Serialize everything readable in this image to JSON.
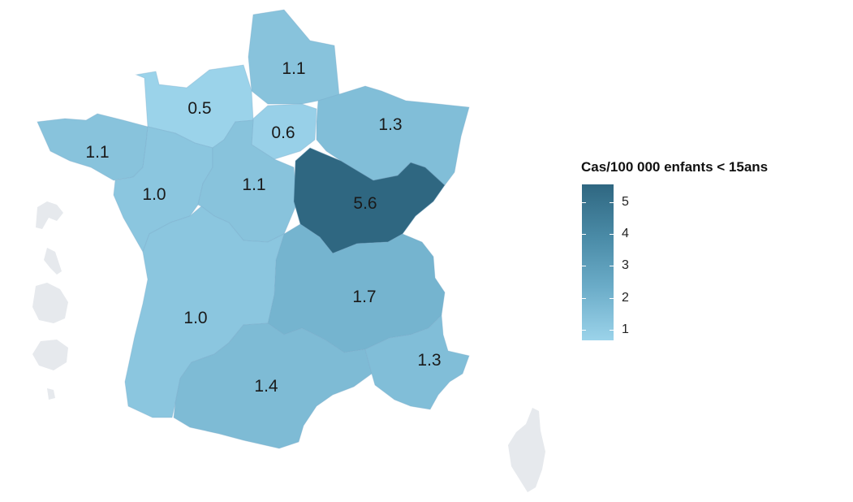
{
  "legend": {
    "title": "Cas/100 000 enfants < 15ans",
    "ticks": [
      "5",
      "4",
      "3",
      "2",
      "1"
    ],
    "colors": {
      "low": "#9bd3ea",
      "mid": "#6aabc7",
      "high": "#2f6781"
    }
  },
  "regions": [
    {
      "id": "hauts-de-france",
      "label": "1.1",
      "value": 1.1
    },
    {
      "id": "normandie",
      "label": "0.5",
      "value": 0.5
    },
    {
      "id": "ile-de-france",
      "label": "0.6",
      "value": 0.6
    },
    {
      "id": "grand-est",
      "label": "1.3",
      "value": 1.3
    },
    {
      "id": "bretagne",
      "label": "1.1",
      "value": 1.1
    },
    {
      "id": "pays-de-la-loire",
      "label": "1.0",
      "value": 1.0
    },
    {
      "id": "centre-val-de-loire",
      "label": "1.1",
      "value": 1.1
    },
    {
      "id": "bourgogne-franche-comte",
      "label": "5.6",
      "value": 5.6
    },
    {
      "id": "auvergne-rhone-alpes",
      "label": "1.7",
      "value": 1.7
    },
    {
      "id": "nouvelle-aquitaine",
      "label": "1.0",
      "value": 1.0
    },
    {
      "id": "occitanie",
      "label": "1.4",
      "value": 1.4
    },
    {
      "id": "provence-alpes-cote-dazur",
      "label": "1.3",
      "value": 1.3
    }
  ],
  "no_data_color": "#e6e9ed"
}
